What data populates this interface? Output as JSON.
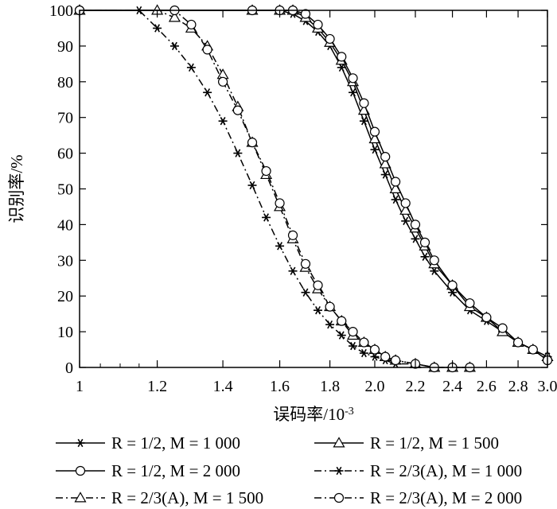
{
  "chart_data": {
    "type": "line",
    "title": "",
    "xlabel": "误码率/10",
    "xlabel_exponent": "-3",
    "ylabel": "识别率/%",
    "xscale": "log",
    "xlim": [
      1.0,
      3.0
    ],
    "ylim": [
      0,
      100
    ],
    "xticks": [
      1,
      1.2,
      1.4,
      1.6,
      1.8,
      2.0,
      2.2,
      2.4,
      2.6,
      2.8,
      3.0
    ],
    "xtick_labels": [
      "1",
      "1.2",
      "1.4",
      "1.6",
      "1.8",
      "2.0",
      "2.2",
      "2.4",
      "2.6",
      "2.8",
      "3.0"
    ],
    "yticks": [
      0,
      10,
      20,
      30,
      40,
      50,
      60,
      70,
      80,
      90,
      100
    ],
    "ytick_labels": [
      "0",
      "10",
      "20",
      "30",
      "40",
      "50",
      "60",
      "70",
      "80",
      "90",
      "100"
    ],
    "grid": false,
    "legend_position": "bottom",
    "series": [
      {
        "name": "R = 1/2, M = 1 000",
        "marker": "star",
        "dash": "solid",
        "x": [
          1.0,
          1.5,
          1.6,
          1.65,
          1.7,
          1.75,
          1.8,
          1.85,
          1.9,
          1.95,
          2.0,
          2.05,
          2.1,
          2.15,
          2.2,
          2.25,
          2.3,
          2.4,
          2.5,
          2.6,
          2.7,
          2.8,
          2.9,
          3.0
        ],
        "y": [
          100,
          100,
          100,
          99,
          97,
          94,
          90,
          84,
          77,
          69,
          61,
          54,
          47,
          41,
          36,
          31,
          27,
          21,
          16,
          13,
          10,
          7,
          5,
          3
        ]
      },
      {
        "name": "R = 1/2, M = 1 500",
        "marker": "triangle",
        "dash": "solid",
        "x": [
          1.0,
          1.5,
          1.6,
          1.65,
          1.7,
          1.75,
          1.8,
          1.85,
          1.9,
          1.95,
          2.0,
          2.05,
          2.1,
          2.15,
          2.2,
          2.25,
          2.3,
          2.4,
          2.5,
          2.6,
          2.7,
          2.8,
          2.9,
          3.0
        ],
        "y": [
          100,
          100,
          100,
          100,
          98,
          95,
          91,
          86,
          80,
          72,
          64,
          57,
          50,
          44,
          39,
          34,
          29,
          23,
          17,
          14,
          10,
          7,
          5,
          3
        ]
      },
      {
        "name": "R = 1/2, M = 2 000",
        "marker": "circle",
        "dash": "solid",
        "x": [
          1.0,
          1.5,
          1.6,
          1.65,
          1.7,
          1.75,
          1.8,
          1.85,
          1.9,
          1.95,
          2.0,
          2.05,
          2.1,
          2.15,
          2.2,
          2.25,
          2.3,
          2.4,
          2.5,
          2.6,
          2.7,
          2.8,
          2.9,
          3.0
        ],
        "y": [
          100,
          100,
          100,
          100,
          99,
          96,
          92,
          87,
          81,
          74,
          66,
          59,
          52,
          46,
          40,
          35,
          30,
          23,
          18,
          14,
          11,
          7,
          5,
          2
        ]
      },
      {
        "name": "R = 2/3(A), M = 1 000",
        "marker": "star",
        "dash": "dashdot",
        "x": [
          1.0,
          1.15,
          1.2,
          1.25,
          1.3,
          1.35,
          1.4,
          1.45,
          1.5,
          1.55,
          1.6,
          1.65,
          1.7,
          1.75,
          1.8,
          1.85,
          1.9,
          1.95,
          2.0,
          2.05,
          2.1,
          2.2,
          2.3,
          2.4,
          2.5
        ],
        "y": [
          100,
          100,
          95,
          90,
          84,
          77,
          69,
          60,
          51,
          42,
          34,
          27,
          21,
          16,
          12,
          9,
          6,
          4,
          3,
          2,
          1,
          1,
          0,
          0,
          0
        ]
      },
      {
        "name": "R = 2/3(A), M = 1 500",
        "marker": "triangle",
        "dash": "dashdot",
        "x": [
          1.0,
          1.2,
          1.25,
          1.3,
          1.35,
          1.4,
          1.45,
          1.5,
          1.55,
          1.6,
          1.65,
          1.7,
          1.75,
          1.8,
          1.85,
          1.9,
          1.95,
          2.0,
          2.05,
          2.1,
          2.2,
          2.3,
          2.4,
          2.5
        ],
        "y": [
          100,
          100,
          98,
          95,
          90,
          82,
          73,
          63,
          54,
          45,
          36,
          28,
          22,
          17,
          13,
          9,
          7,
          5,
          3,
          2,
          1,
          0,
          0,
          0
        ]
      },
      {
        "name": "R = 2/3(A), M = 2 000",
        "marker": "circle",
        "dash": "dashdot",
        "x": [
          1.0,
          1.25,
          1.3,
          1.35,
          1.4,
          1.45,
          1.5,
          1.55,
          1.6,
          1.65,
          1.7,
          1.75,
          1.8,
          1.85,
          1.9,
          1.95,
          2.0,
          2.05,
          2.1,
          2.2,
          2.3,
          2.4,
          2.5
        ],
        "y": [
          100,
          100,
          96,
          89,
          80,
          72,
          63,
          55,
          46,
          37,
          29,
          23,
          17,
          13,
          10,
          7,
          5,
          3,
          2,
          1,
          0,
          0,
          0
        ]
      }
    ]
  }
}
